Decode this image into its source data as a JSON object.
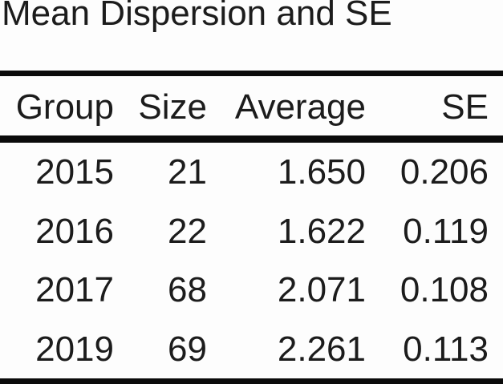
{
  "title": "Mean Dispersion and SE",
  "table": {
    "columns": [
      "Group",
      "Size",
      "Average",
      "SE"
    ],
    "rows": [
      [
        "2015",
        "21",
        "1.650",
        "0.206"
      ],
      [
        "2016",
        "22",
        "1.622",
        "0.119"
      ],
      [
        "2017",
        "68",
        "2.071",
        "0.108"
      ],
      [
        "2019",
        "69",
        "2.261",
        "0.113"
      ]
    ]
  },
  "chart_data": {
    "type": "table",
    "title": "Mean Dispersion and SE",
    "columns": [
      "Group",
      "Size",
      "Average",
      "SE"
    ],
    "rows": [
      {
        "group": "2015",
        "size": 21,
        "average": 1.65,
        "se": 0.206
      },
      {
        "group": "2016",
        "size": 22,
        "average": 1.622,
        "se": 0.119
      },
      {
        "group": "2017",
        "size": 68,
        "average": 2.071,
        "se": 0.108
      },
      {
        "group": "2019",
        "size": 69,
        "average": 2.261,
        "se": 0.113
      }
    ]
  },
  "colors": {
    "text": "#1c1c1c",
    "rule": "#0b0b0b",
    "background": "#fdfdfd"
  }
}
